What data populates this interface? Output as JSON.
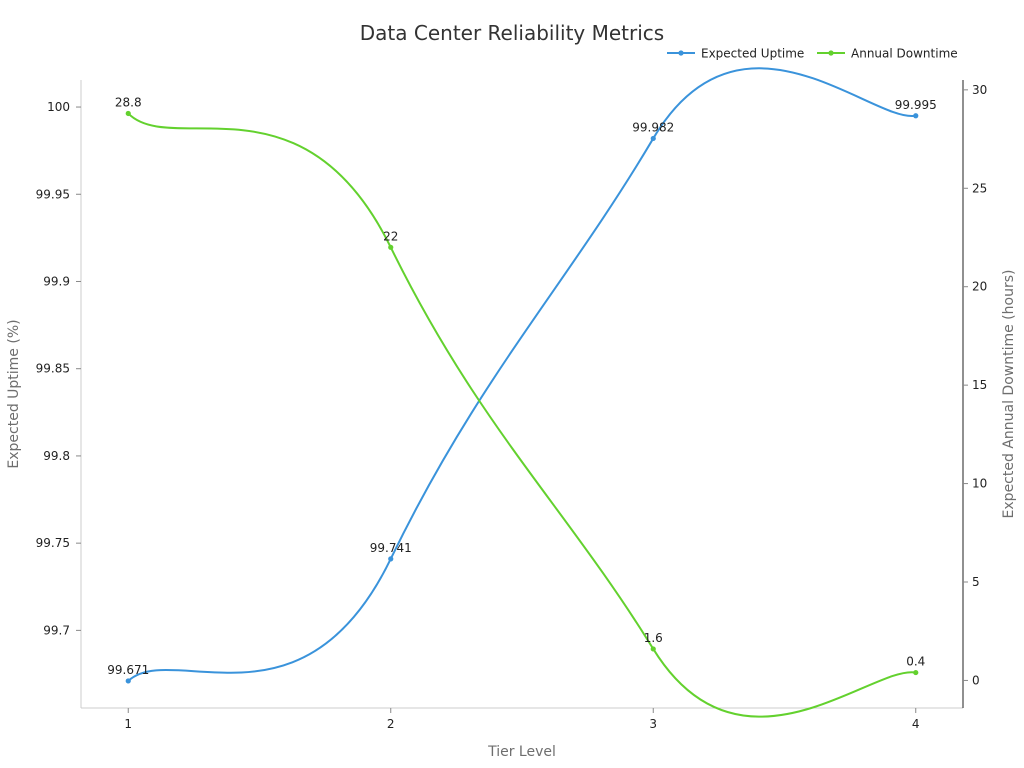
{
  "chart_data": {
    "type": "line",
    "title": "Data Center Reliability Metrics",
    "xlabel": "Tier Level",
    "ylabel": "Expected Uptime (%)",
    "y2label": "Expected Annual Downtime (hours)",
    "categories": [
      "1",
      "2",
      "3",
      "4"
    ],
    "x": [
      1,
      2,
      3,
      4
    ],
    "xlim": [
      0.82,
      4.18
    ],
    "ylim": [
      99.6555,
      100.0155
    ],
    "y2lim": [
      -1.4,
      30.5
    ],
    "yticks": [
      "99.7",
      "99.75",
      "99.8",
      "99.85",
      "99.9",
      "99.95",
      "100"
    ],
    "y2ticks": [
      "0",
      "5",
      "10",
      "15",
      "20",
      "25",
      "30"
    ],
    "grid": false,
    "legend_position": "top-right",
    "series": [
      {
        "name": "Expected Uptime",
        "axis": "left",
        "color": "#3a93db",
        "values": [
          99.671,
          99.741,
          99.982,
          99.995
        ],
        "labels": [
          "99.671",
          "99.741",
          "99.982",
          "99.995"
        ]
      },
      {
        "name": "Annual Downtime",
        "axis": "right",
        "color": "#63d12e",
        "values": [
          28.8,
          22,
          1.6,
          0.4
        ],
        "labels": [
          "28.8",
          "22",
          "1.6",
          "0.4"
        ]
      }
    ]
  }
}
